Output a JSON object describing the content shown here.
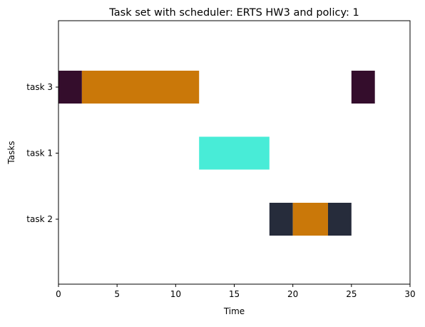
{
  "chart_data": {
    "type": "gantt",
    "title": "Task set with scheduler: ERTS HW3 and policy: 1",
    "xlabel": "Time",
    "ylabel": "Tasks",
    "xlim": [
      0,
      30
    ],
    "x_ticks": [
      "0",
      "5",
      "10",
      "15",
      "20",
      "25",
      "30"
    ],
    "categories": [
      "task 3",
      "task 1",
      "task 2"
    ],
    "grid": false,
    "colors": {
      "task3_base": "#340d2c",
      "task2_base": "#262c3b",
      "task1_base": "#48ecd7",
      "preempt": "#ca7809"
    },
    "segments": [
      {
        "task": "task 3",
        "start": 0,
        "end": 2,
        "color": "#340d2c"
      },
      {
        "task": "task 3",
        "start": 2,
        "end": 12,
        "color": "#ca7809"
      },
      {
        "task": "task 3",
        "start": 25,
        "end": 27,
        "color": "#340d2c"
      },
      {
        "task": "task 1",
        "start": 12,
        "end": 18,
        "color": "#48ecd7"
      },
      {
        "task": "task 2",
        "start": 18,
        "end": 20,
        "color": "#262c3b"
      },
      {
        "task": "task 2",
        "start": 20,
        "end": 23,
        "color": "#ca7809"
      },
      {
        "task": "task 2",
        "start": 23,
        "end": 25,
        "color": "#262c3b"
      }
    ]
  }
}
